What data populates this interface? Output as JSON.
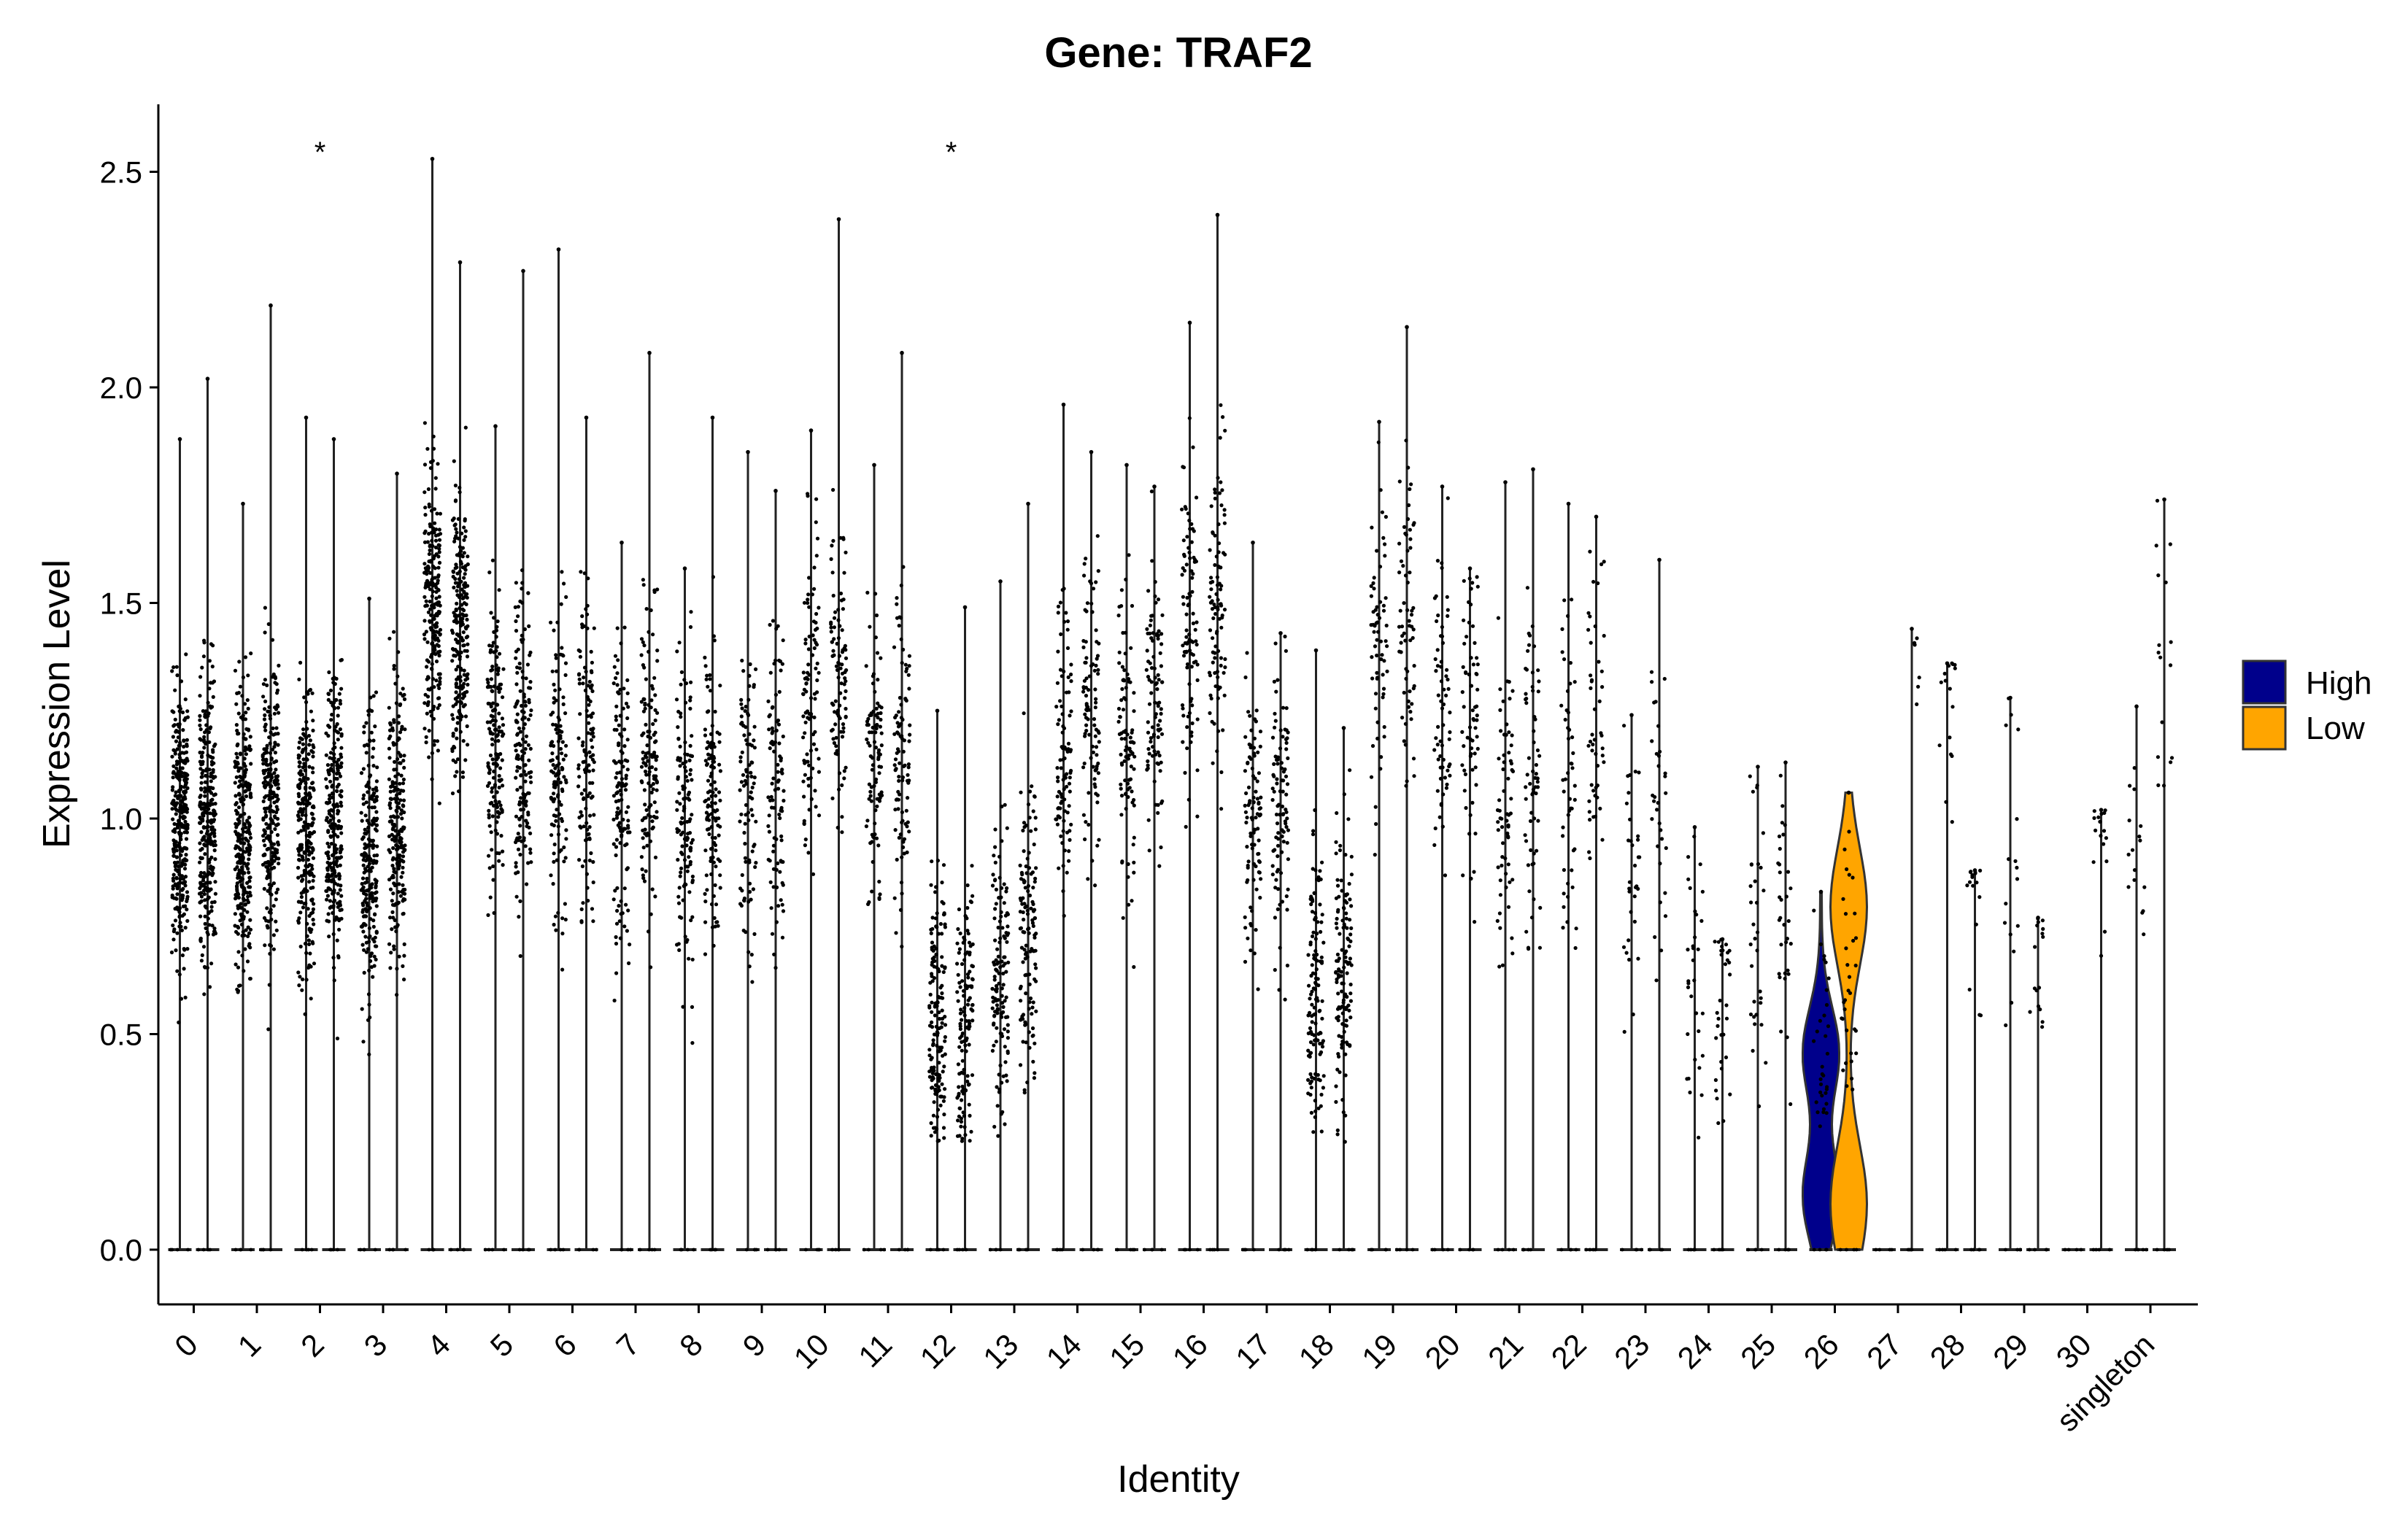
{
  "chart_data": {
    "type": "violin",
    "title": "Gene: TRAF2",
    "xlabel": "Identity",
    "ylabel": "Expression Level",
    "ylim": [
      -0.13,
      2.65
    ],
    "yticks": [
      "0.0",
      "0.5",
      "1.0",
      "1.5",
      "2.0",
      "2.5"
    ],
    "ytick_values": [
      0,
      0.5,
      1.0,
      1.5,
      2.0,
      2.5
    ],
    "categories": [
      "0",
      "1",
      "2",
      "3",
      "4",
      "5",
      "6",
      "7",
      "8",
      "9",
      "10",
      "11",
      "12",
      "13",
      "14",
      "15",
      "16",
      "17",
      "18",
      "19",
      "20",
      "21",
      "22",
      "23",
      "24",
      "25",
      "26",
      "27",
      "28",
      "29",
      "30",
      "singleton"
    ],
    "significance_marks": [
      {
        "category": "2",
        "label": "*",
        "y": 2.56
      },
      {
        "category": "12",
        "label": "*",
        "y": 2.56
      }
    ],
    "legend": {
      "position": "right",
      "entries": [
        {
          "name": "High",
          "color": "#00008B"
        },
        {
          "name": "Low",
          "color": "#FFA500"
        }
      ]
    },
    "series": [
      {
        "name": "High",
        "color": "#00008B",
        "max": [
          1.88,
          1.73,
          1.93,
          1.51,
          2.53,
          1.91,
          2.32,
          1.64,
          1.58,
          1.85,
          1.9,
          1.82,
          1.25,
          1.55,
          1.96,
          1.82,
          2.15,
          1.64,
          1.39,
          1.92,
          1.77,
          1.78,
          1.73,
          1.24,
          0.98,
          1.12,
          0.83,
          0.0,
          1.36,
          1.28,
          0.0,
          1.26
        ],
        "center": [
          1.0,
          0.95,
          0.98,
          0.92,
          1.5,
          1.18,
          1.12,
          1.05,
          1.0,
          1.05,
          1.3,
          1.15,
          0.55,
          0.65,
          1.18,
          1.15,
          1.45,
          1.0,
          0.6,
          1.4,
          1.25,
          1.05,
          1.1,
          0.9,
          0.6,
          0.7,
          0.45,
          0.0,
          1.3,
          0.9,
          0.0,
          0.9
        ],
        "density": [
          1.0,
          0.9,
          0.8,
          0.7,
          0.7,
          0.5,
          0.4,
          0.4,
          0.4,
          0.3,
          0.3,
          0.3,
          0.5,
          0.4,
          0.3,
          0.3,
          0.3,
          0.3,
          0.4,
          0.2,
          0.2,
          0.2,
          0.15,
          0.1,
          0.1,
          0.1,
          0.1,
          0,
          0.05,
          0.05,
          0,
          0.05
        ]
      },
      {
        "name": "Low",
        "color": "#FFA500",
        "max": [
          2.02,
          2.19,
          1.88,
          1.8,
          2.29,
          2.27,
          1.93,
          2.08,
          1.93,
          1.76,
          2.39,
          2.08,
          1.49,
          1.73,
          1.85,
          1.77,
          2.4,
          1.43,
          1.21,
          2.14,
          1.58,
          1.81,
          1.7,
          1.6,
          0.72,
          1.13,
          1.06,
          1.44,
          0.88,
          0.77,
          1.02,
          1.74
        ],
        "center": [
          1.0,
          1.05,
          1.0,
          1.0,
          1.45,
          1.15,
          1.15,
          1.15,
          1.05,
          1.1,
          1.35,
          1.2,
          0.5,
          0.75,
          1.25,
          1.3,
          1.5,
          1.05,
          0.65,
          1.45,
          1.25,
          1.1,
          1.2,
          1.05,
          0.6,
          0.8,
          0.6,
          1.4,
          0.85,
          0.75,
          1.0,
          1.4
        ],
        "density": [
          0.9,
          0.8,
          0.8,
          0.7,
          0.7,
          0.5,
          0.4,
          0.4,
          0.4,
          0.3,
          0.3,
          0.3,
          0.4,
          0.4,
          0.3,
          0.3,
          0.3,
          0.3,
          0.4,
          0.2,
          0.2,
          0.2,
          0.15,
          0.1,
          0.1,
          0.1,
          0.1,
          0.02,
          0.05,
          0.05,
          0.05,
          0.05
        ]
      }
    ]
  }
}
